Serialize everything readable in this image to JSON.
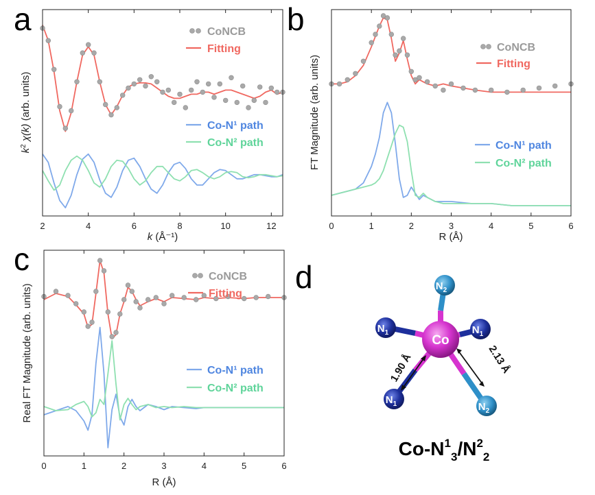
{
  "chart_data": [
    {
      "panel": "a",
      "type": "line",
      "xlabel_main": "k",
      "xlabel_unit": " (Å⁻¹)",
      "ylabel_parts": [
        "k",
        "2",
        " χ(k)",
        " (arb. units)"
      ],
      "xlim": [
        2,
        12.5
      ],
      "ylim": [
        -1.0,
        1.0
      ],
      "xticks": [
        2,
        4,
        6,
        8,
        10,
        12
      ],
      "xtick_labels": [
        "2",
        "4",
        "6",
        "8",
        "10",
        "12"
      ],
      "legend": [
        "CoNCB",
        "Fitting",
        "Co-N¹ path",
        "Co-N² path"
      ],
      "series": [
        {
          "name": "CoNCB",
          "style": "scatter",
          "x": [
            2.0,
            2.25,
            2.5,
            2.75,
            3.0,
            3.25,
            3.5,
            3.75,
            4.0,
            4.25,
            4.5,
            4.75,
            5.0,
            5.25,
            5.5,
            5.75,
            6.0,
            6.25,
            6.5,
            6.75,
            7.0,
            7.25,
            7.5,
            7.75,
            8.0,
            8.25,
            8.5,
            8.75,
            9.0,
            9.25,
            9.5,
            9.75,
            10.0,
            10.25,
            10.5,
            10.75,
            11.0,
            11.25,
            11.5,
            11.75,
            12.0,
            12.25,
            12.5
          ],
          "y": [
            0.82,
            0.7,
            0.42,
            0.06,
            -0.15,
            0.02,
            0.3,
            0.58,
            0.66,
            0.58,
            0.3,
            0.08,
            -0.02,
            0.05,
            0.17,
            0.24,
            0.28,
            0.32,
            0.26,
            0.35,
            0.3,
            0.2,
            0.22,
            0.1,
            0.18,
            0.05,
            0.22,
            0.3,
            0.2,
            0.28,
            0.15,
            0.28,
            0.12,
            0.34,
            0.1,
            0.26,
            0.05,
            0.12,
            0.25,
            0.1,
            0.24,
            0.2,
            0.2
          ]
        },
        {
          "name": "Fitting",
          "style": "line",
          "x": [
            2.0,
            2.25,
            2.5,
            2.75,
            3.0,
            3.25,
            3.5,
            3.75,
            4.0,
            4.25,
            4.5,
            4.75,
            5.0,
            5.25,
            5.5,
            5.75,
            6.0,
            6.25,
            6.5,
            6.75,
            7.0,
            7.25,
            7.5,
            7.75,
            8.0,
            8.25,
            8.5,
            8.75,
            9.0,
            9.25,
            9.5,
            9.75,
            10.0,
            10.25,
            10.5,
            10.75,
            11.0,
            11.25,
            11.5,
            11.75,
            12.0,
            12.25,
            12.5
          ],
          "y": [
            0.85,
            0.7,
            0.4,
            0.02,
            -0.18,
            0.0,
            0.3,
            0.56,
            0.64,
            0.56,
            0.3,
            0.08,
            -0.02,
            0.06,
            0.17,
            0.25,
            0.28,
            0.29,
            0.29,
            0.28,
            0.24,
            0.2,
            0.16,
            0.14,
            0.14,
            0.16,
            0.18,
            0.18,
            0.2,
            0.2,
            0.18,
            0.2,
            0.22,
            0.22,
            0.2,
            0.18,
            0.16,
            0.14,
            0.16,
            0.2,
            0.22,
            0.18,
            0.2
          ]
        },
        {
          "name": "Co-N¹ path",
          "style": "line",
          "x": [
            2.0,
            2.25,
            2.5,
            2.75,
            3.0,
            3.25,
            3.5,
            3.75,
            4.0,
            4.25,
            4.5,
            4.75,
            5.0,
            5.25,
            5.5,
            5.75,
            6.0,
            6.25,
            6.5,
            6.75,
            7.0,
            7.25,
            7.5,
            7.75,
            8.0,
            8.25,
            8.5,
            8.75,
            9.0,
            9.25,
            9.5,
            9.75,
            10.0,
            10.25,
            10.5,
            10.75,
            11.0,
            11.25,
            11.5,
            11.75,
            12.0,
            12.25,
            12.5
          ],
          "y": [
            -0.4,
            -0.48,
            -0.68,
            -0.85,
            -0.92,
            -0.8,
            -0.6,
            -0.45,
            -0.4,
            -0.48,
            -0.65,
            -0.78,
            -0.82,
            -0.72,
            -0.56,
            -0.46,
            -0.44,
            -0.52,
            -0.64,
            -0.74,
            -0.78,
            -0.7,
            -0.58,
            -0.5,
            -0.48,
            -0.54,
            -0.64,
            -0.7,
            -0.7,
            -0.64,
            -0.58,
            -0.55,
            -0.56,
            -0.6,
            -0.64,
            -0.64,
            -0.62,
            -0.6,
            -0.6,
            -0.61,
            -0.62,
            -0.62,
            -0.6
          ]
        },
        {
          "name": "Co-N² path",
          "style": "line",
          "x": [
            2.0,
            2.25,
            2.5,
            2.75,
            3.0,
            3.25,
            3.5,
            3.75,
            4.0,
            4.25,
            4.5,
            4.75,
            5.0,
            5.25,
            5.5,
            5.75,
            6.0,
            6.25,
            6.5,
            6.75,
            7.0,
            7.25,
            7.5,
            7.75,
            8.0,
            8.25,
            8.5,
            8.75,
            9.0,
            9.25,
            9.5,
            9.75,
            10.0,
            10.25,
            10.5,
            10.75,
            11.0,
            11.25,
            11.5,
            11.75,
            12.0,
            12.25,
            12.5
          ],
          "y": [
            -0.56,
            -0.66,
            -0.75,
            -0.7,
            -0.56,
            -0.46,
            -0.42,
            -0.46,
            -0.56,
            -0.68,
            -0.72,
            -0.64,
            -0.52,
            -0.46,
            -0.47,
            -0.54,
            -0.64,
            -0.7,
            -0.66,
            -0.58,
            -0.52,
            -0.52,
            -0.58,
            -0.64,
            -0.66,
            -0.62,
            -0.56,
            -0.55,
            -0.58,
            -0.62,
            -0.64,
            -0.62,
            -0.58,
            -0.57,
            -0.58,
            -0.62,
            -0.63,
            -0.62,
            -0.6,
            -0.6,
            -0.61,
            -0.62,
            -0.61
          ]
        }
      ]
    },
    {
      "panel": "b",
      "type": "line",
      "xlabel": "R (Å)",
      "ylabel": "FT Magnitude (arb. units)",
      "xlim": [
        0,
        6
      ],
      "ylim": [
        0,
        1.0
      ],
      "xticks": [
        0,
        1,
        2,
        3,
        4,
        5,
        6
      ],
      "xtick_labels": [
        "0",
        "1",
        "2",
        "3",
        "4",
        "5",
        "6"
      ],
      "legend": [
        "CoNCB",
        "Fitting",
        "Co-N¹ path",
        "Co-N² path"
      ],
      "series": [
        {
          "name": "CoNCB",
          "style": "scatter",
          "x": [
            0.0,
            0.2,
            0.4,
            0.6,
            0.8,
            1.0,
            1.1,
            1.2,
            1.3,
            1.4,
            1.5,
            1.6,
            1.7,
            1.8,
            1.9,
            2.0,
            2.1,
            2.2,
            2.4,
            2.6,
            2.8,
            3.0,
            3.3,
            3.6,
            4.0,
            4.4,
            4.8,
            5.2,
            5.6,
            6.0
          ],
          "y": [
            0.64,
            0.64,
            0.66,
            0.69,
            0.75,
            0.84,
            0.88,
            0.92,
            0.97,
            0.96,
            0.88,
            0.78,
            0.8,
            0.86,
            0.78,
            0.7,
            0.66,
            0.67,
            0.65,
            0.63,
            0.61,
            0.64,
            0.62,
            0.61,
            0.61,
            0.6,
            0.61,
            0.62,
            0.63,
            0.64
          ]
        },
        {
          "name": "Fitting",
          "style": "line",
          "x": [
            0.0,
            0.2,
            0.4,
            0.6,
            0.8,
            1.0,
            1.1,
            1.2,
            1.3,
            1.4,
            1.5,
            1.6,
            1.7,
            1.8,
            1.9,
            2.0,
            2.1,
            2.2,
            2.4,
            2.6,
            2.8,
            3.0,
            3.3,
            3.6,
            4.0,
            4.4,
            4.8,
            5.2,
            5.6,
            6.0
          ],
          "y": [
            0.64,
            0.64,
            0.65,
            0.68,
            0.73,
            0.82,
            0.87,
            0.92,
            0.96,
            0.95,
            0.86,
            0.75,
            0.79,
            0.85,
            0.76,
            0.68,
            0.64,
            0.66,
            0.64,
            0.63,
            0.64,
            0.63,
            0.62,
            0.61,
            0.6,
            0.6,
            0.6,
            0.6,
            0.6,
            0.6
          ]
        },
        {
          "name": "Co-N¹ path",
          "style": "line",
          "x": [
            0.0,
            0.2,
            0.4,
            0.6,
            0.8,
            1.0,
            1.1,
            1.2,
            1.3,
            1.4,
            1.5,
            1.6,
            1.7,
            1.8,
            1.9,
            2.0,
            2.1,
            2.2,
            2.3,
            2.4,
            2.6,
            2.8,
            3.0,
            3.5,
            4.0,
            4.5,
            5.0,
            5.5,
            6.0
          ],
          "y": [
            0.1,
            0.11,
            0.12,
            0.13,
            0.16,
            0.24,
            0.3,
            0.38,
            0.5,
            0.55,
            0.5,
            0.35,
            0.18,
            0.09,
            0.1,
            0.14,
            0.11,
            0.08,
            0.1,
            0.09,
            0.07,
            0.07,
            0.07,
            0.06,
            0.06,
            0.05,
            0.05,
            0.05,
            0.05
          ]
        },
        {
          "name": "Co-N² path",
          "style": "line",
          "x": [
            0.0,
            0.2,
            0.4,
            0.6,
            0.8,
            1.0,
            1.1,
            1.2,
            1.3,
            1.4,
            1.5,
            1.6,
            1.7,
            1.8,
            1.9,
            2.0,
            2.1,
            2.2,
            2.3,
            2.4,
            2.6,
            2.8,
            3.0,
            3.5,
            4.0,
            4.5,
            5.0,
            5.5,
            6.0
          ],
          "y": [
            0.1,
            0.11,
            0.12,
            0.13,
            0.14,
            0.15,
            0.16,
            0.18,
            0.22,
            0.28,
            0.34,
            0.4,
            0.44,
            0.43,
            0.36,
            0.22,
            0.1,
            0.09,
            0.11,
            0.09,
            0.07,
            0.06,
            0.06,
            0.06,
            0.06,
            0.05,
            0.05,
            0.05,
            0.05
          ]
        }
      ]
    },
    {
      "panel": "c",
      "type": "line",
      "xlabel": "R (Å)",
      "ylabel": "Real FT Magnitude (arb. units)",
      "xlim": [
        0,
        6
      ],
      "ylim": [
        -1.0,
        1.0
      ],
      "xticks": [
        0,
        1,
        2,
        3,
        4,
        5,
        6
      ],
      "xtick_labels": [
        "0",
        "1",
        "2",
        "3",
        "4",
        "5",
        "6"
      ],
      "legend": [
        "CoNCB",
        "Fitting",
        "Co-N¹ path",
        "Co-N² path"
      ],
      "series": [
        {
          "name": "CoNCB",
          "style": "scatter",
          "x": [
            0.0,
            0.3,
            0.6,
            0.8,
            1.0,
            1.1,
            1.2,
            1.3,
            1.4,
            1.5,
            1.6,
            1.7,
            1.8,
            1.9,
            2.0,
            2.1,
            2.2,
            2.3,
            2.4,
            2.6,
            2.8,
            3.0,
            3.2,
            3.5,
            3.8,
            4.0,
            4.3,
            4.6,
            5.0,
            5.3,
            5.6,
            6.0
          ],
          "y": [
            0.55,
            0.6,
            0.56,
            0.48,
            0.4,
            0.26,
            0.3,
            0.6,
            0.9,
            0.8,
            0.4,
            0.16,
            0.2,
            0.38,
            0.52,
            0.66,
            0.6,
            0.5,
            0.44,
            0.52,
            0.54,
            0.48,
            0.56,
            0.54,
            0.52,
            0.56,
            0.53,
            0.55,
            0.53,
            0.54,
            0.55,
            0.54
          ]
        },
        {
          "name": "Fitting",
          "style": "line",
          "x": [
            0.0,
            0.3,
            0.6,
            0.8,
            1.0,
            1.1,
            1.2,
            1.3,
            1.4,
            1.5,
            1.6,
            1.7,
            1.8,
            1.9,
            2.0,
            2.1,
            2.2,
            2.3,
            2.4,
            2.6,
            2.8,
            3.0,
            3.2,
            3.5,
            3.8,
            4.0,
            4.3,
            4.6,
            5.0,
            5.3,
            5.6,
            6.0
          ],
          "y": [
            0.52,
            0.58,
            0.55,
            0.47,
            0.38,
            0.25,
            0.28,
            0.58,
            0.9,
            0.78,
            0.38,
            0.14,
            0.18,
            0.38,
            0.5,
            0.64,
            0.6,
            0.52,
            0.46,
            0.5,
            0.53,
            0.5,
            0.54,
            0.53,
            0.52,
            0.54,
            0.53,
            0.54,
            0.53,
            0.54,
            0.54,
            0.54
          ]
        },
        {
          "name": "Co-N¹ path",
          "style": "line",
          "x": [
            0.0,
            0.3,
            0.6,
            0.8,
            1.0,
            1.1,
            1.2,
            1.3,
            1.4,
            1.5,
            1.6,
            1.7,
            1.8,
            1.9,
            2.0,
            2.1,
            2.2,
            2.3,
            2.4,
            2.6,
            2.8,
            3.0,
            3.2,
            3.5,
            3.8,
            4.0,
            4.5,
            5.0,
            5.5,
            6.0
          ],
          "y": [
            -0.6,
            -0.56,
            -0.52,
            -0.56,
            -0.66,
            -0.75,
            -0.6,
            -0.1,
            0.25,
            -0.2,
            -0.92,
            -0.55,
            -0.4,
            -0.62,
            -0.7,
            -0.52,
            -0.45,
            -0.52,
            -0.56,
            -0.5,
            -0.52,
            -0.55,
            -0.52,
            -0.53,
            -0.54,
            -0.53,
            -0.53,
            -0.53,
            -0.53,
            -0.53
          ]
        },
        {
          "name": "Co-N² path",
          "style": "line",
          "x": [
            0.0,
            0.3,
            0.6,
            0.8,
            1.0,
            1.1,
            1.2,
            1.3,
            1.4,
            1.5,
            1.6,
            1.7,
            1.8,
            1.9,
            2.0,
            2.1,
            2.2,
            2.3,
            2.4,
            2.6,
            2.8,
            3.0,
            3.2,
            3.5,
            3.8,
            4.0,
            4.5,
            5.0,
            5.5,
            6.0
          ],
          "y": [
            -0.52,
            -0.56,
            -0.55,
            -0.5,
            -0.47,
            -0.52,
            -0.62,
            -0.58,
            -0.45,
            -0.5,
            -0.2,
            0.12,
            -0.3,
            -0.65,
            -0.5,
            -0.44,
            -0.5,
            -0.55,
            -0.52,
            -0.5,
            -0.53,
            -0.52,
            -0.53,
            -0.52,
            -0.53,
            -0.53,
            -0.53,
            -0.53,
            -0.53,
            -0.53
          ]
        }
      ]
    }
  ],
  "panel_letters": [
    "a",
    "b",
    "c",
    "d"
  ],
  "structure": {
    "center": "Co",
    "atom_N": "N",
    "sub_1": "1",
    "sub_2": "2",
    "bond_1": "1.90 Å",
    "bond_2": "2.13 Å",
    "formula": {
      "p1": "Co-N",
      "s1": "1",
      "i1": "3",
      "p2": "/N",
      "s2": "2",
      "i2": "2"
    }
  },
  "colors": {
    "data": "#a9a9a9",
    "fitting": "#f06860",
    "path1": "#7fa9ea",
    "path2": "#8ee0b0",
    "data_label": "#9a9a9a",
    "fitting_label": "#f06860",
    "path1_label": "#4f86e0",
    "path2_label": "#5fd49a",
    "co_atom": "#d634cf",
    "n1_atom": "#1d2f9c",
    "n2_atom": "#2e8fc8",
    "bond": "#1a1a1a"
  }
}
